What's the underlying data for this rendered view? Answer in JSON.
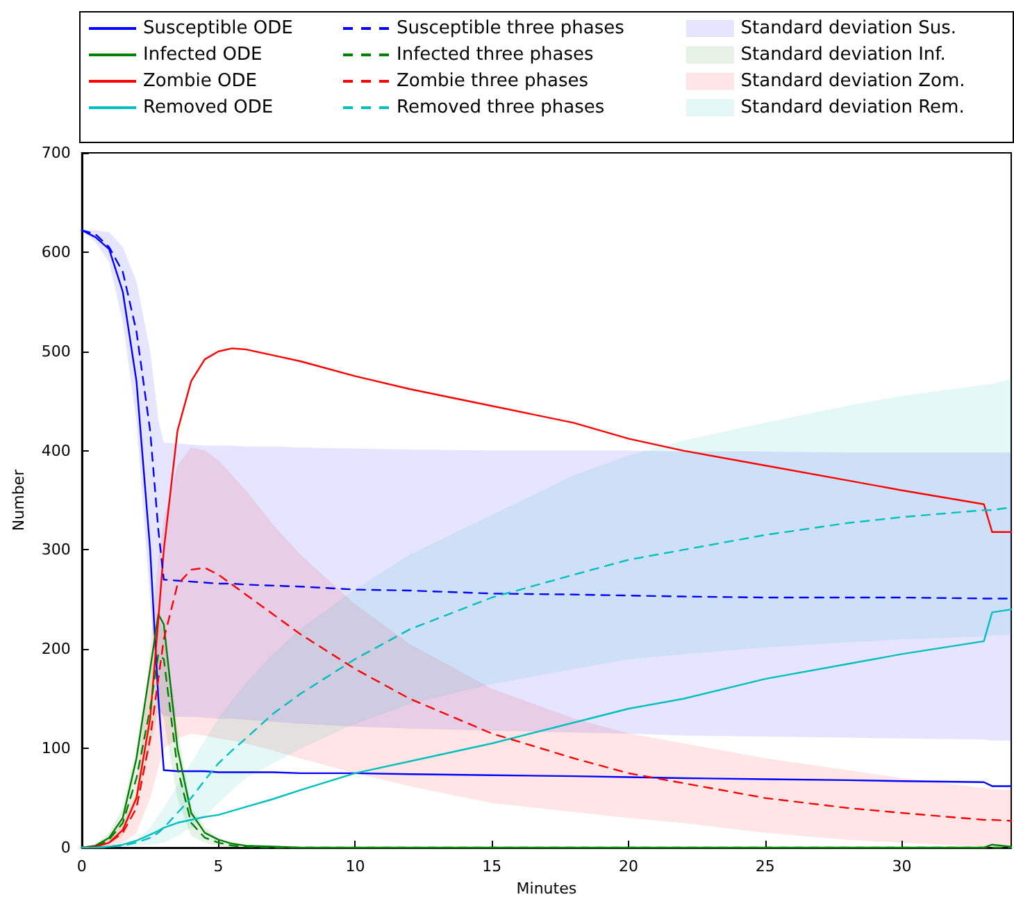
{
  "chart_data": {
    "type": "line",
    "xlabel": "Minutes",
    "ylabel": "Number",
    "legend": "top",
    "marker": "none",
    "x": [
      0,
      0.5,
      1,
      1.5,
      2,
      2.5,
      2.8,
      3,
      3.5,
      4,
      4.5,
      5,
      5.5,
      6,
      7,
      8,
      10,
      12,
      15,
      18,
      20,
      22,
      25,
      28,
      30,
      33,
      33.3,
      34
    ],
    "xlim": [
      0,
      34
    ],
    "xticks": [
      0,
      5,
      10,
      15,
      20,
      25,
      30
    ],
    "ylim": [
      0,
      700
    ],
    "yticks": [
      0,
      100,
      200,
      300,
      400,
      500,
      600,
      700
    ],
    "series": [
      {
        "name": "Susceptible ODE",
        "color": "#0000ff",
        "line_style": "solid",
        "values": [
          622,
          615,
          603,
          560,
          470,
          300,
          150,
          78,
          77,
          77,
          77,
          76,
          76,
          76,
          76,
          75,
          75,
          74,
          73,
          72,
          71,
          70,
          69,
          68,
          67,
          66,
          62,
          62
        ]
      },
      {
        "name": "Infected ODE",
        "color": "#008000",
        "line_style": "solid",
        "values": [
          0,
          2,
          10,
          30,
          90,
          180,
          235,
          225,
          100,
          35,
          15,
          8,
          4,
          2,
          1,
          0,
          0,
          0,
          0,
          0,
          0,
          0,
          0,
          0,
          0,
          0,
          3,
          1
        ]
      },
      {
        "name": "Zombie ODE",
        "color": "#ff0000",
        "line_style": "solid",
        "values": [
          0,
          1,
          5,
          18,
          50,
          130,
          230,
          300,
          420,
          470,
          492,
          500,
          503,
          502,
          496,
          490,
          475,
          462,
          445,
          428,
          412,
          400,
          385,
          370,
          360,
          346,
          318,
          318
        ]
      },
      {
        "name": "Removed ODE",
        "color": "#00bfbf",
        "line_style": "solid",
        "values": [
          0,
          0,
          1,
          3,
          7,
          13,
          17,
          20,
          25,
          28,
          31,
          33,
          37,
          41,
          49,
          58,
          75,
          87,
          105,
          126,
          140,
          150,
          170,
          185,
          195,
          208,
          237,
          240
        ]
      },
      {
        "name": "Susceptible three phases",
        "color": "#0000ff",
        "line_style": "dashed",
        "values": [
          622,
          618,
          605,
          580,
          520,
          420,
          320,
          270,
          269,
          268,
          267,
          266,
          266,
          265,
          264,
          263,
          260,
          259,
          256,
          255,
          254,
          253,
          252,
          252,
          252,
          251,
          251,
          251
        ]
      },
      {
        "name": "Infected three phases",
        "color": "#008000",
        "line_style": "dashed",
        "values": [
          0,
          1,
          8,
          25,
          70,
          140,
          195,
          190,
          80,
          25,
          10,
          5,
          2,
          1,
          0,
          0,
          0,
          0,
          0,
          0,
          0,
          0,
          0,
          0,
          0,
          0,
          0,
          0
        ]
      },
      {
        "name": "Zombie three phases",
        "color": "#ff0000",
        "line_style": "dashed",
        "values": [
          0,
          1,
          5,
          15,
          40,
          110,
          170,
          210,
          265,
          280,
          282,
          275,
          265,
          255,
          235,
          215,
          180,
          150,
          115,
          90,
          75,
          65,
          50,
          40,
          35,
          28,
          28,
          27
        ]
      },
      {
        "name": "Removed three phases",
        "color": "#00bfbf",
        "line_style": "dashed",
        "values": [
          0,
          0,
          1,
          2,
          5,
          10,
          15,
          20,
          35,
          50,
          68,
          85,
          98,
          110,
          135,
          155,
          190,
          220,
          252,
          275,
          290,
          300,
          315,
          327,
          333,
          340,
          340,
          343
        ]
      },
      {
        "type": "area",
        "name": "Standard deviation Sus.",
        "color": "#0000ff",
        "values": [
          null,
          null,
          null,
          null,
          null,
          null,
          null,
          null,
          null,
          null,
          null,
          null,
          null,
          null,
          null,
          null,
          null,
          null,
          null,
          null,
          null,
          null,
          null,
          null,
          null,
          null,
          null,
          null
        ],
        "upper": [
          622,
          622,
          620,
          605,
          570,
          500,
          430,
          408,
          407,
          406,
          405,
          405,
          405,
          404,
          404,
          403,
          402,
          401,
          400,
          400,
          400,
          399,
          399,
          398,
          398,
          398,
          398,
          398
        ],
        "lower": [
          622,
          610,
          590,
          530,
          430,
          250,
          140,
          133,
          132,
          132,
          131,
          130,
          130,
          129,
          127,
          125,
          122,
          120,
          118,
          116,
          115,
          113,
          112,
          111,
          110,
          109,
          108,
          108
        ]
      },
      {
        "type": "area",
        "name": "Standard deviation Inf.",
        "color": "#008000",
        "values": [
          null,
          null,
          null,
          null,
          null,
          null,
          null,
          null,
          null,
          null,
          null,
          null,
          null,
          null,
          null,
          null,
          null,
          null,
          null,
          null,
          null,
          null,
          null,
          null,
          null,
          null,
          null,
          null
        ],
        "upper": [
          0,
          3,
          15,
          40,
          100,
          180,
          230,
          220,
          120,
          40,
          20,
          10,
          5,
          2,
          0,
          0,
          0,
          0,
          0,
          0,
          0,
          0,
          0,
          0,
          0,
          0,
          0,
          0
        ],
        "lower": [
          0,
          0,
          3,
          12,
          45,
          100,
          140,
          130,
          50,
          12,
          5,
          2,
          0,
          0,
          0,
          0,
          0,
          0,
          0,
          0,
          0,
          0,
          0,
          0,
          0,
          0,
          0,
          0
        ]
      },
      {
        "type": "area",
        "name": "Standard deviation Zom.",
        "color": "#ff0000",
        "values": [
          null,
          null,
          null,
          null,
          null,
          null,
          null,
          null,
          null,
          null,
          null,
          null,
          null,
          null,
          null,
          null,
          null,
          null,
          null,
          null,
          null,
          null,
          null,
          null,
          null,
          null,
          null,
          null
        ],
        "upper": [
          0,
          2,
          10,
          25,
          55,
          200,
          290,
          330,
          385,
          403,
          400,
          390,
          375,
          360,
          325,
          295,
          245,
          205,
          160,
          130,
          115,
          105,
          90,
          78,
          70,
          60,
          59,
          58
        ],
        "lower": [
          0,
          0,
          1,
          5,
          15,
          50,
          80,
          100,
          110,
          115,
          113,
          110,
          108,
          105,
          98,
          90,
          75,
          62,
          45,
          36,
          30,
          25,
          15,
          8,
          5,
          1,
          1,
          0
        ]
      },
      {
        "type": "area",
        "name": "Standard deviation Rem.",
        "color": "#00bfbf",
        "values": [
          null,
          null,
          null,
          null,
          null,
          null,
          null,
          null,
          null,
          null,
          null,
          null,
          null,
          null,
          null,
          null,
          null,
          null,
          null,
          null,
          null,
          null,
          null,
          null,
          null,
          null,
          null,
          null
        ],
        "upper": [
          0,
          0,
          1,
          3,
          8,
          20,
          32,
          40,
          62,
          85,
          108,
          130,
          148,
          165,
          195,
          220,
          260,
          295,
          335,
          375,
          395,
          410,
          428,
          445,
          455,
          466,
          467,
          472
        ],
        "lower": [
          0,
          0,
          0,
          1,
          2,
          3,
          4,
          5,
          12,
          20,
          32,
          45,
          58,
          70,
          85,
          100,
          125,
          145,
          165,
          180,
          190,
          195,
          202,
          207,
          210,
          213,
          214,
          215
        ]
      }
    ]
  }
}
